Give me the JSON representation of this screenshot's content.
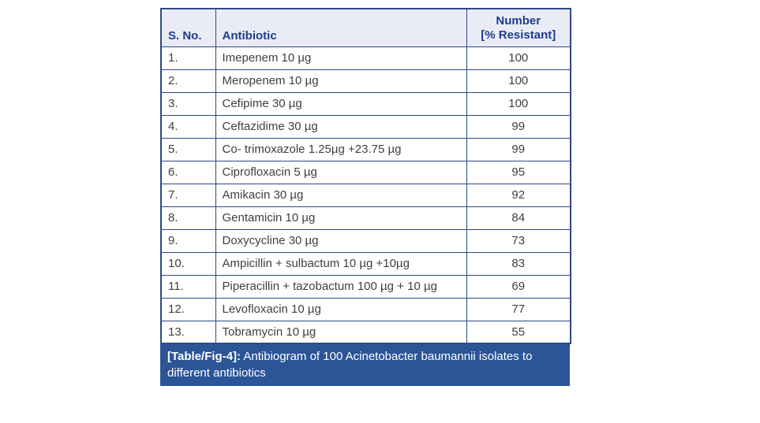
{
  "colors": {
    "page-bg": "#ffffff",
    "border": "#2e4a85",
    "header-bg": "#eaecf5",
    "header-text": "#1e3c8c",
    "body-text": "#3f3f3f",
    "caption-bg": "#2b5597",
    "caption-text": "#ffffff"
  },
  "table": {
    "columns": {
      "sno": "S. No.",
      "antibiotic": "Antibiotic",
      "number": "Number\n[% Resistant]"
    },
    "rows": [
      {
        "sno": "1.",
        "antibiotic": "Imepenem 10 µg",
        "number": "100"
      },
      {
        "sno": "2.",
        "antibiotic": "Meropenem 10 µg",
        "number": "100"
      },
      {
        "sno": "3.",
        "antibiotic": "Cefipime 30 µg",
        "number": "100"
      },
      {
        "sno": "4.",
        "antibiotic": "Ceftazidime 30 µg",
        "number": "99"
      },
      {
        "sno": "5.",
        "antibiotic": "Co- trimoxazole 1.25µg +23.75 µg",
        "number": "99"
      },
      {
        "sno": "6.",
        "antibiotic": "Ciprofloxacin 5 µg",
        "number": "95"
      },
      {
        "sno": "7.",
        "antibiotic": "Amikacin 30 µg",
        "number": "92"
      },
      {
        "sno": "8.",
        "antibiotic": "Gentamicin 10 µg",
        "number": "84"
      },
      {
        "sno": "9.",
        "antibiotic": "Doxycycline 30 µg",
        "number": "73"
      },
      {
        "sno": "10.",
        "antibiotic": "Ampicillin + sulbactum 10 µg +10µg",
        "number": "83"
      },
      {
        "sno": "11.",
        "antibiotic": "Piperacillin + tazobactum 100 µg + 10 µg",
        "number": "69"
      },
      {
        "sno": "12.",
        "antibiotic": "Levofloxacin 10 µg",
        "number": "77"
      },
      {
        "sno": "13.",
        "antibiotic": "Tobramycin 10 µg",
        "number": "55"
      }
    ],
    "caption": {
      "label": "[Table/Fig-4]:",
      "text": " Antibiogram of 100 Acinetobacter baumannii isolates to different antibiotics"
    }
  }
}
